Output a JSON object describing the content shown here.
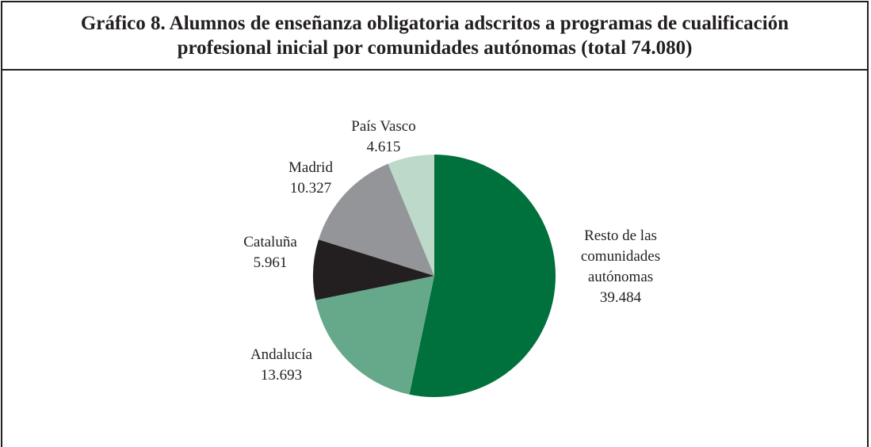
{
  "chart_data": {
    "type": "pie",
    "title": "Gráfico 8. Alumnos de enseñanza obligatoria adscritos a programas de cualificación profesional inicial por comunidades autónomas (total 74.080)",
    "categories": [
      "Resto de las comunidades autónomas",
      "Andalucía",
      "Cataluña",
      "Madrid",
      "País Vasco"
    ],
    "values": [
      39484,
      13693,
      5961,
      10327,
      4615
    ],
    "value_labels": [
      "39.484",
      "13.693",
      "5.961",
      "10.327",
      "4.615"
    ],
    "colors": [
      "#00703c",
      "#66a88a",
      "#231f20",
      "#939598",
      "#bcd9c9"
    ]
  }
}
